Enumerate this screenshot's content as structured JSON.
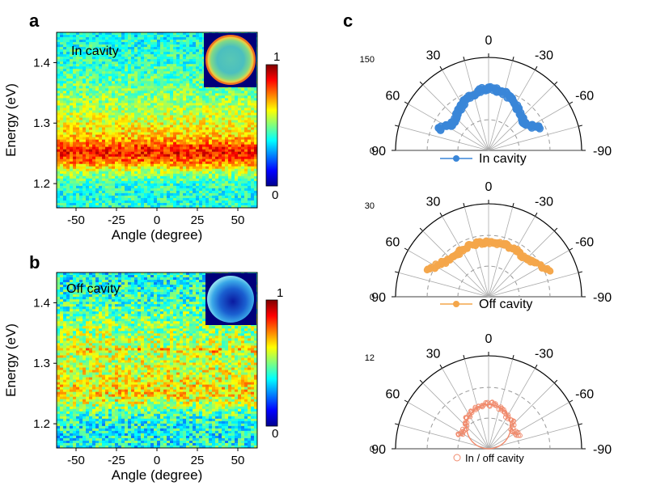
{
  "panels": {
    "a": {
      "letter": "a",
      "label": "In cavity"
    },
    "b": {
      "letter": "b",
      "label": "Off cavity"
    },
    "c": {
      "letter": "c"
    }
  },
  "colors": {
    "in_cavity": "#3a86d8",
    "off_cavity": "#f4a64a",
    "ratio": "#f08a6c",
    "jet": [
      "#00008f",
      "#0000ff",
      "#007fff",
      "#00ffff",
      "#7fff7f",
      "#ffff00",
      "#ff7f00",
      "#ff0000",
      "#7f0000"
    ]
  },
  "chart_data": [
    {
      "type": "heatmap",
      "panel": "a",
      "annotation": "In cavity",
      "xlabel": "Angle (degree)",
      "ylabel": "Energy (eV)",
      "xlim": [
        -62,
        62
      ],
      "ylim": [
        1.16,
        1.45
      ],
      "xticks": [
        -50,
        -25,
        0,
        25,
        50
      ],
      "xtick_labels": [
        "-50",
        "-25",
        "0",
        "25",
        "50"
      ],
      "yticks": [
        1.2,
        1.3,
        1.4
      ],
      "ytick_labels": [
        "1.2",
        "1.3",
        "1.4"
      ],
      "colorbar": {
        "min": 0,
        "max": 1,
        "min_label": "0",
        "max_label": "1",
        "colormap": "jet"
      },
      "energy_profile": {
        "energy": [
          1.16,
          1.18,
          1.2,
          1.22,
          1.235,
          1.25,
          1.26,
          1.27,
          1.28,
          1.3,
          1.32,
          1.35,
          1.38,
          1.41,
          1.45
        ],
        "intensity": [
          0.42,
          0.4,
          0.43,
          0.55,
          0.75,
          0.86,
          0.82,
          0.72,
          0.66,
          0.6,
          0.56,
          0.5,
          0.45,
          0.42,
          0.38
        ]
      },
      "inset": "far-field image, top-right"
    },
    {
      "type": "heatmap",
      "panel": "b",
      "annotation": "Off cavity",
      "xlabel": "Angle (degree)",
      "ylabel": "Energy (eV)",
      "xlim": [
        -62,
        62
      ],
      "ylim": [
        1.16,
        1.45
      ],
      "xticks": [
        -50,
        -25,
        0,
        25,
        50
      ],
      "xtick_labels": [
        "-50",
        "-25",
        "0",
        "25",
        "50"
      ],
      "yticks": [
        1.2,
        1.3,
        1.4
      ],
      "ytick_labels": [
        "1.2",
        "1.3",
        "1.4"
      ],
      "colorbar": {
        "min": 0,
        "max": 1,
        "min_label": "0",
        "max_label": "1",
        "colormap": "jet"
      },
      "energy_profile": {
        "energy": [
          1.16,
          1.18,
          1.2,
          1.22,
          1.235,
          1.25,
          1.26,
          1.28,
          1.3,
          1.32,
          1.34,
          1.37,
          1.4,
          1.43,
          1.45
        ],
        "intensity": [
          0.4,
          0.38,
          0.4,
          0.46,
          0.58,
          0.64,
          0.63,
          0.6,
          0.58,
          0.57,
          0.55,
          0.5,
          0.44,
          0.4,
          0.38
        ]
      },
      "line_feature_energy": 1.322,
      "inset": "far-field image, top-right"
    },
    {
      "type": "scatter",
      "coordinate_system": "polar-half",
      "panel": "c1",
      "legend": "In cavity",
      "r_max": 150,
      "r_tick_labels": [
        "150",
        "0"
      ],
      "angle_labels": [
        "0",
        "30",
        "-30",
        "60",
        "-60",
        "90",
        "-90"
      ],
      "angles": [
        -65,
        -60,
        -55,
        -50,
        -45,
        -40,
        -35,
        -30,
        -25,
        -20,
        -15,
        -10,
        -5,
        0,
        5,
        10,
        15,
        20,
        25,
        30,
        35,
        40,
        45,
        50,
        55,
        60,
        65
      ],
      "values": [
        88,
        80,
        74,
        72,
        75,
        78,
        82,
        85,
        90,
        93,
        96,
        98,
        100,
        100,
        99,
        97,
        94,
        91,
        88,
        85,
        81,
        78,
        74,
        72,
        73,
        79,
        86
      ]
    },
    {
      "type": "scatter",
      "coordinate_system": "polar-half",
      "panel": "c2",
      "legend": "Off cavity",
      "r_max": 30,
      "r_tick_labels": [
        "30",
        "0"
      ],
      "angle_labels": [
        "0",
        "30",
        "-30",
        "60",
        "-60",
        "90",
        "-90"
      ],
      "angles": [
        -65,
        -60,
        -55,
        -50,
        -45,
        -40,
        -35,
        -30,
        -25,
        -20,
        -15,
        -10,
        -5,
        0,
        5,
        10,
        15,
        20,
        25,
        30,
        35,
        40,
        45,
        50,
        55,
        60,
        65
      ],
      "values": [
        21,
        19.5,
        18.5,
        18,
        17.5,
        17,
        17.2,
        17.5,
        17.3,
        17.6,
        17.8,
        17.5,
        17.7,
        17.6,
        17.5,
        17.8,
        17.4,
        17.6,
        17.2,
        17.4,
        17,
        17.3,
        17.6,
        18,
        18.6,
        19.6,
        21.5
      ]
    },
    {
      "type": "scatter",
      "coordinate_system": "polar-half",
      "panel": "c3",
      "legend": "In / off cavity",
      "r_max": 12,
      "r_tick_labels": [
        "12",
        "0"
      ],
      "angle_labels": [
        "0",
        "30",
        "-30",
        "60",
        "-60",
        "90",
        "-90"
      ],
      "angles": [
        -65,
        -60,
        -55,
        -50,
        -45,
        -40,
        -35,
        -30,
        -25,
        -20,
        -15,
        -10,
        -5,
        0,
        5,
        10,
        15,
        20,
        25,
        30,
        35,
        40,
        45,
        50,
        55,
        60,
        65
      ],
      "values": [
        4.2,
        4.1,
        4.0,
        4.0,
        4.3,
        4.6,
        4.8,
        4.9,
        5.2,
        5.3,
        5.4,
        5.6,
        5.7,
        5.7,
        5.7,
        5.5,
        5.4,
        5.3,
        5.1,
        4.9,
        4.8,
        4.6,
        4.3,
        4.0,
        4.0,
        4.0,
        4.1
      ],
      "fit": {
        "model": "cos",
        "amplitude": 5.7
      }
    }
  ]
}
